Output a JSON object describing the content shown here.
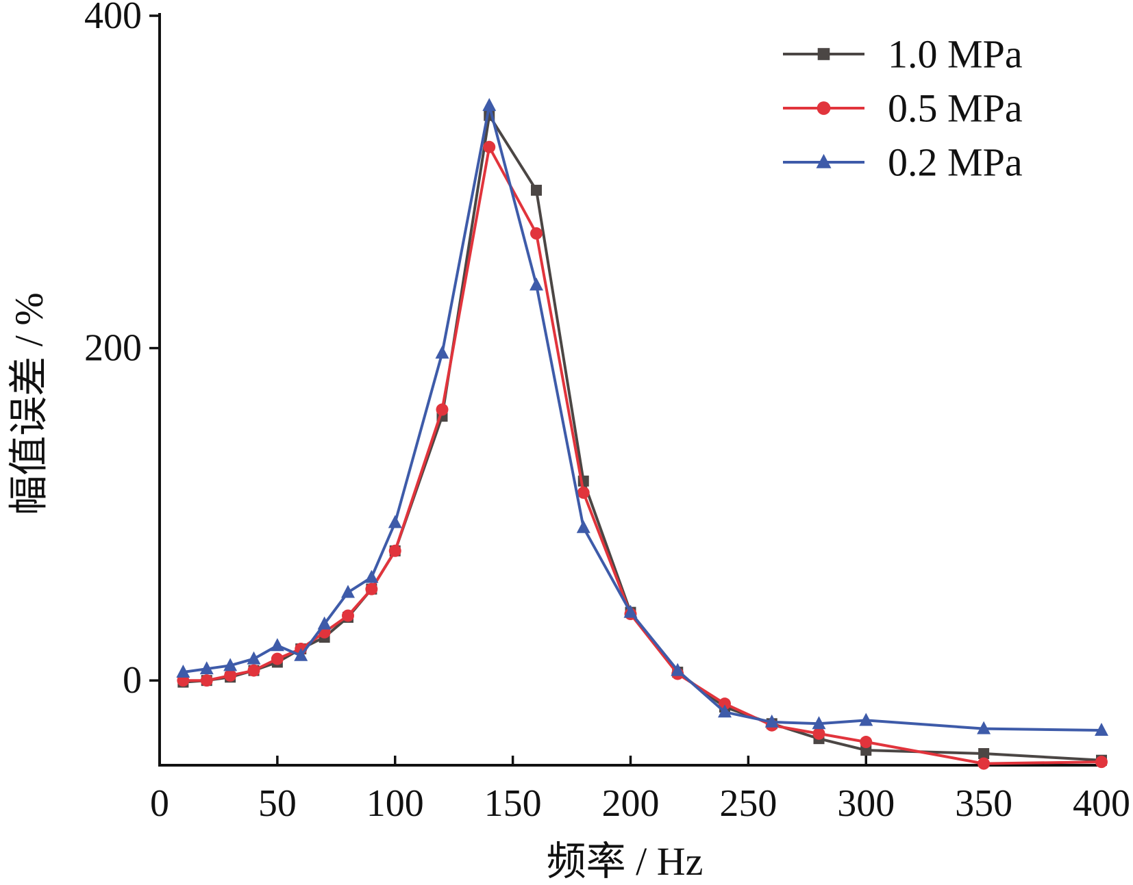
{
  "chart_data": {
    "type": "line",
    "title": "",
    "xlabel": "频率 / Hz",
    "ylabel": "幅值误差 / %",
    "xlim": [
      0,
      400
    ],
    "ylim": [
      -51,
      400
    ],
    "xticks": [
      0,
      50,
      100,
      150,
      200,
      250,
      300,
      350,
      400
    ],
    "yticks": [
      0,
      200,
      400
    ],
    "grid": false,
    "legend_position": "top-right",
    "series": [
      {
        "name": "1.0 MPa",
        "color": "#4b4644",
        "marker": "square",
        "x": [
          10,
          20,
          30,
          40,
          50,
          60,
          70,
          80,
          90,
          100,
          120,
          140,
          160,
          180,
          200,
          220,
          240,
          260,
          280,
          300,
          350,
          400
        ],
        "y": [
          -1,
          0,
          2,
          6,
          11,
          19,
          26,
          38,
          55,
          78,
          159,
          340,
          295,
          120,
          41,
          5,
          -16,
          -26,
          -35,
          -42,
          -44,
          -48
        ]
      },
      {
        "name": "0.5 MPa",
        "color": "#e1343c",
        "marker": "circle",
        "x": [
          10,
          20,
          30,
          40,
          50,
          60,
          70,
          80,
          90,
          100,
          120,
          140,
          160,
          180,
          200,
          220,
          240,
          260,
          280,
          300,
          350,
          400
        ],
        "y": [
          0,
          0,
          3,
          6,
          13,
          19,
          29,
          39,
          55,
          78,
          163,
          321,
          269,
          113,
          40,
          4,
          -14,
          -27,
          -32,
          -37,
          -50,
          -49
        ]
      },
      {
        "name": "0.2 MPa",
        "color": "#3e5ba9",
        "marker": "triangle",
        "x": [
          10,
          20,
          30,
          40,
          50,
          60,
          70,
          80,
          90,
          100,
          120,
          140,
          160,
          180,
          200,
          220,
          240,
          260,
          280,
          300,
          350,
          400
        ],
        "y": [
          5,
          7,
          9,
          13,
          21,
          15,
          34,
          53,
          62,
          95,
          197,
          346,
          238,
          92,
          41,
          6,
          -19,
          -25,
          -26,
          -24,
          -29,
          -30
        ]
      }
    ]
  }
}
